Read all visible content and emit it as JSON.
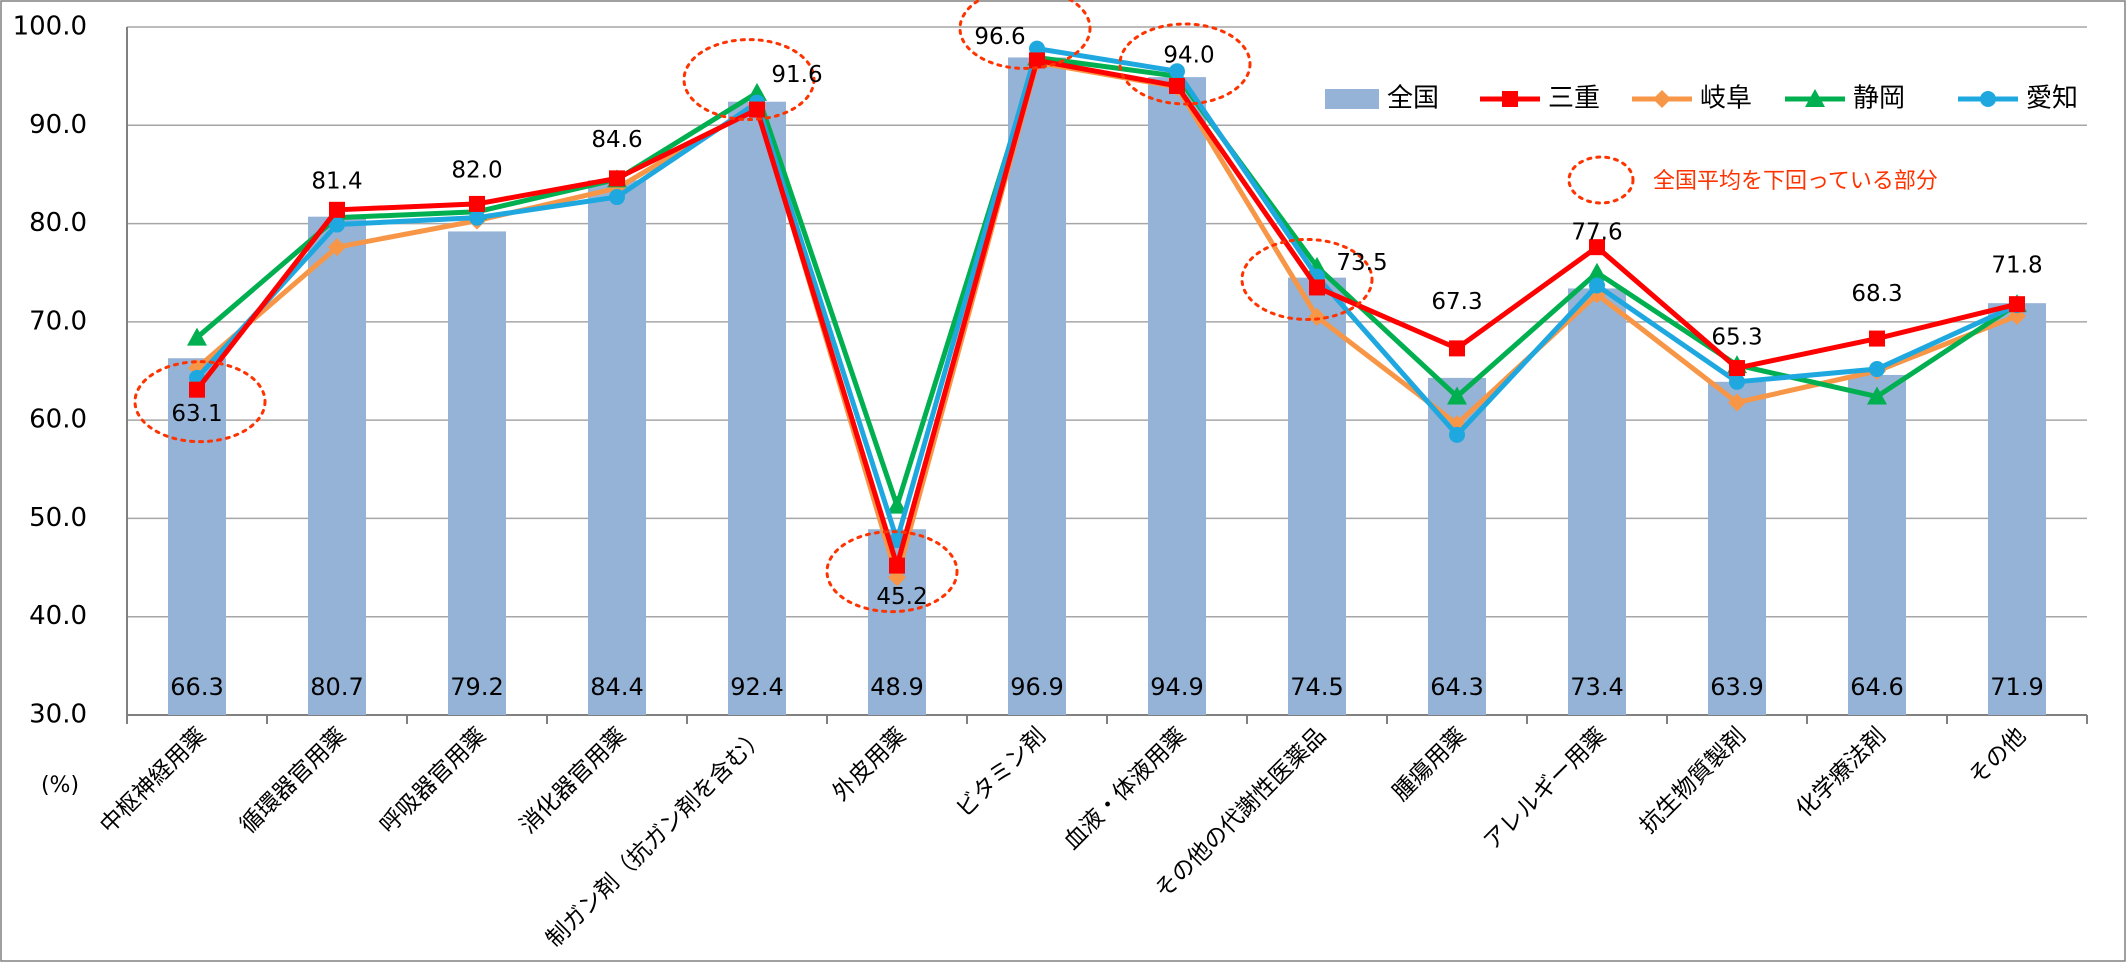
{
  "chart_data": {
    "type": "bar",
    "title": "",
    "xlabel": "",
    "ylabel": "",
    "unit_label": "(%)",
    "ylim": [
      30,
      100
    ],
    "yticks": [
      "30.0",
      "40.0",
      "50.0",
      "60.0",
      "70.0",
      "80.0",
      "90.0",
      "100.0"
    ],
    "grid": true,
    "legend_position": "top-right",
    "categories": [
      "中枢神経用薬",
      "循環器官用薬",
      "呼吸器官用薬",
      "消化器官用薬",
      "制ガン剤（抗ガン剤を含む）",
      "外皮用薬",
      "ビタミン剤",
      "血液・体液用薬",
      "その他の代謝性医薬品",
      "腫瘍用薬",
      "アレルギー用薬",
      "抗生物質製剤",
      "化学療法剤",
      "その他"
    ],
    "bar_series": {
      "name": "全国",
      "color": "#95b3d7",
      "values": [
        66.3,
        80.7,
        79.2,
        84.4,
        92.4,
        48.9,
        96.9,
        94.9,
        74.5,
        64.3,
        73.4,
        63.9,
        64.6,
        71.9
      ],
      "labels": [
        "66.3",
        "80.7",
        "79.2",
        "84.4",
        "92.4",
        "48.9",
        "96.9",
        "94.9",
        "74.5",
        "64.3",
        "73.4",
        "63.9",
        "64.6",
        "71.9"
      ]
    },
    "line_series": [
      {
        "name": "三重",
        "color": "#ff0000",
        "marker": "square",
        "values": [
          63.1,
          81.4,
          82.0,
          84.6,
          91.6,
          45.2,
          96.6,
          94.0,
          73.5,
          67.3,
          77.6,
          65.3,
          68.3,
          71.8
        ]
      },
      {
        "name": "岐阜",
        "color": "#f79646",
        "marker": "diamond",
        "values": [
          65.3,
          77.6,
          80.3,
          83.6,
          92.0,
          44.0,
          96.4,
          93.9,
          70.5,
          59.6,
          72.8,
          61.8,
          65.0,
          70.6
        ]
      },
      {
        "name": "静岡",
        "color": "#00b050",
        "marker": "triangle",
        "values": [
          68.4,
          80.6,
          81.2,
          84.5,
          93.3,
          51.3,
          96.9,
          95.0,
          75.6,
          62.4,
          75.0,
          65.6,
          62.4,
          71.8
        ]
      },
      {
        "name": "愛知",
        "color": "#1fa8e0",
        "marker": "circle",
        "values": [
          64.3,
          79.9,
          80.6,
          82.7,
          92.3,
          47.8,
          97.8,
          95.5,
          74.6,
          58.5,
          73.7,
          63.9,
          65.2,
          71.7
        ]
      }
    ],
    "data_labels": [
      {
        "index": 0,
        "text": "63.1",
        "highlight": true
      },
      {
        "index": 1,
        "text": "81.4",
        "highlight": false
      },
      {
        "index": 2,
        "text": "82.0",
        "highlight": false
      },
      {
        "index": 3,
        "text": "84.6",
        "highlight": false
      },
      {
        "index": 4,
        "text": "91.6",
        "highlight": true
      },
      {
        "index": 5,
        "text": "45.2",
        "highlight": true
      },
      {
        "index": 6,
        "text": "96.6",
        "highlight": true
      },
      {
        "index": 7,
        "text": "94.0",
        "highlight": true
      },
      {
        "index": 8,
        "text": "73.5",
        "highlight": true
      },
      {
        "index": 9,
        "text": "67.3",
        "highlight": false
      },
      {
        "index": 10,
        "text": "77.6",
        "highlight": false
      },
      {
        "index": 11,
        "text": "65.3",
        "highlight": false
      },
      {
        "index": 12,
        "text": "68.3",
        "highlight": false
      },
      {
        "index": 13,
        "text": "71.8",
        "highlight": false
      }
    ],
    "annotation": {
      "text": "全国平均を下回っている部分",
      "color": "#ff3300"
    }
  }
}
